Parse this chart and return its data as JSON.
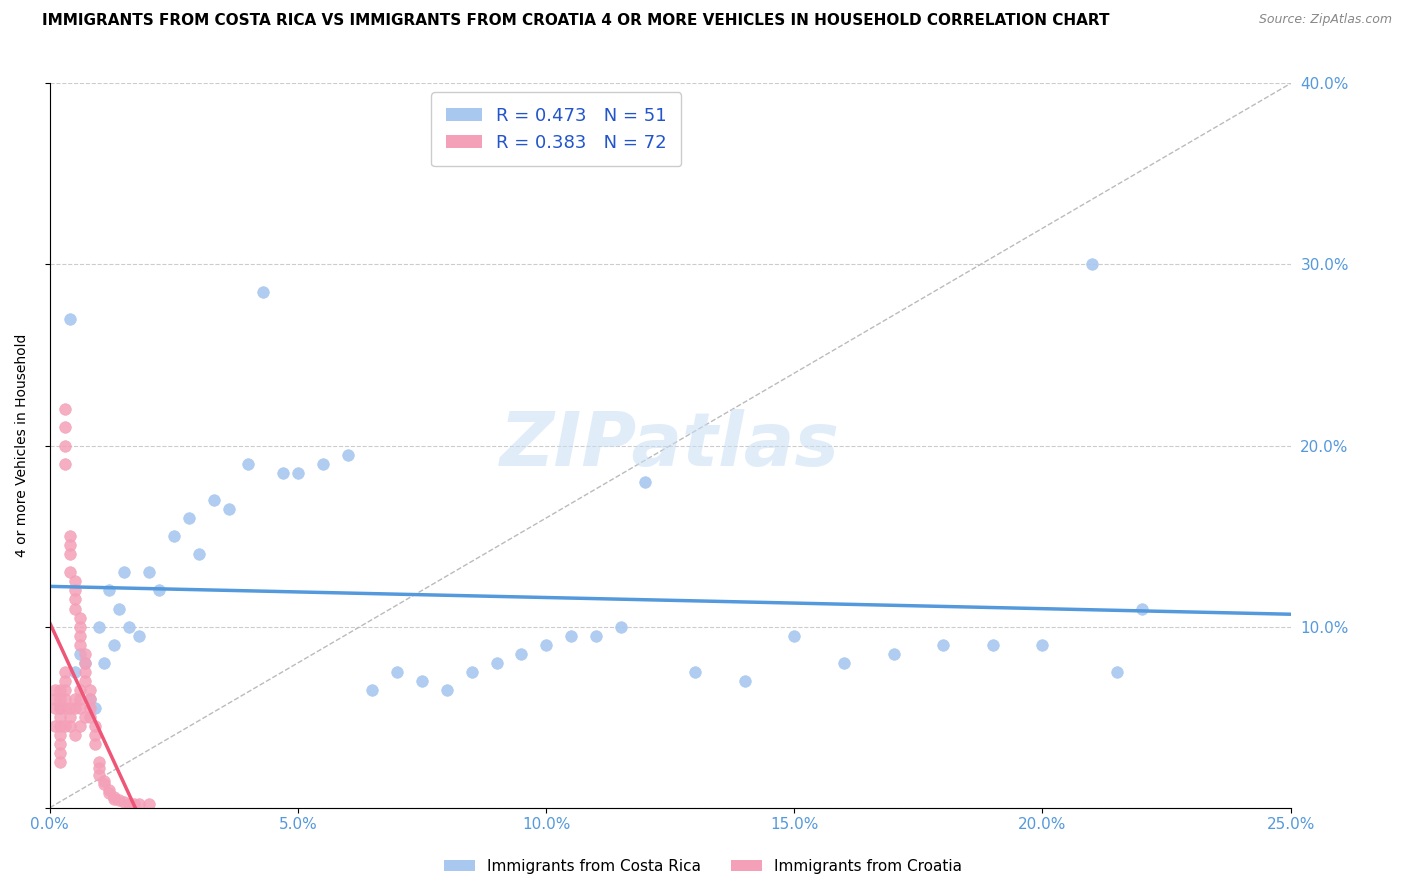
{
  "title": "IMMIGRANTS FROM COSTA RICA VS IMMIGRANTS FROM CROATIA 4 OR MORE VEHICLES IN HOUSEHOLD CORRELATION CHART",
  "source": "Source: ZipAtlas.com",
  "ylabel": "4 or more Vehicles in Household",
  "xlim": [
    0.0,
    0.25
  ],
  "ylim": [
    0.0,
    0.4
  ],
  "xticks": [
    0.0,
    0.05,
    0.1,
    0.15,
    0.2,
    0.25
  ],
  "yticks": [
    0.0,
    0.1,
    0.2,
    0.3,
    0.4
  ],
  "xtick_labels": [
    "0.0%",
    "5.0%",
    "10.0%",
    "15.0%",
    "20.0%",
    "25.0%"
  ],
  "ytick_labels_right": [
    "",
    "10.0%",
    "20.0%",
    "30.0%",
    "40.0%"
  ],
  "blue_color": "#a8c8f0",
  "pink_color": "#f4a0b8",
  "blue_line_color": "#5599dd",
  "pink_line_color": "#ee5577",
  "R_blue": 0.473,
  "N_blue": 51,
  "R_pink": 0.383,
  "N_pink": 72,
  "legend_label_blue": "Immigrants from Costa Rica",
  "legend_label_pink": "Immigrants from Croatia",
  "watermark": "ZIPatlas",
  "title_fontsize": 11,
  "axis_label_fontsize": 10,
  "tick_fontsize": 11,
  "blue_scatter_x": [
    0.002,
    0.004,
    0.005,
    0.006,
    0.007,
    0.008,
    0.009,
    0.01,
    0.011,
    0.012,
    0.013,
    0.014,
    0.015,
    0.016,
    0.018,
    0.02,
    0.022,
    0.025,
    0.028,
    0.03,
    0.033,
    0.036,
    0.04,
    0.043,
    0.047,
    0.05,
    0.055,
    0.06,
    0.065,
    0.07,
    0.075,
    0.08,
    0.085,
    0.09,
    0.095,
    0.1,
    0.105,
    0.11,
    0.115,
    0.12,
    0.13,
    0.14,
    0.15,
    0.16,
    0.17,
    0.18,
    0.19,
    0.2,
    0.21,
    0.215,
    0.22
  ],
  "blue_scatter_y": [
    0.055,
    0.27,
    0.075,
    0.085,
    0.08,
    0.06,
    0.055,
    0.1,
    0.08,
    0.12,
    0.09,
    0.11,
    0.13,
    0.1,
    0.095,
    0.13,
    0.12,
    0.15,
    0.16,
    0.14,
    0.17,
    0.165,
    0.19,
    0.285,
    0.185,
    0.185,
    0.19,
    0.195,
    0.065,
    0.075,
    0.07,
    0.065,
    0.075,
    0.08,
    0.085,
    0.09,
    0.095,
    0.095,
    0.1,
    0.18,
    0.075,
    0.07,
    0.095,
    0.08,
    0.085,
    0.09,
    0.09,
    0.09,
    0.3,
    0.075,
    0.11
  ],
  "pink_scatter_x": [
    0.001,
    0.001,
    0.001,
    0.001,
    0.002,
    0.002,
    0.002,
    0.002,
    0.002,
    0.002,
    0.002,
    0.002,
    0.002,
    0.003,
    0.003,
    0.003,
    0.003,
    0.003,
    0.003,
    0.003,
    0.003,
    0.003,
    0.003,
    0.004,
    0.004,
    0.004,
    0.004,
    0.004,
    0.004,
    0.004,
    0.005,
    0.005,
    0.005,
    0.005,
    0.005,
    0.005,
    0.005,
    0.006,
    0.006,
    0.006,
    0.006,
    0.006,
    0.006,
    0.006,
    0.006,
    0.007,
    0.007,
    0.007,
    0.007,
    0.007,
    0.008,
    0.008,
    0.008,
    0.008,
    0.009,
    0.009,
    0.009,
    0.01,
    0.01,
    0.01,
    0.011,
    0.011,
    0.012,
    0.012,
    0.013,
    0.013,
    0.014,
    0.015,
    0.016,
    0.017,
    0.018,
    0.02
  ],
  "pink_scatter_y": [
    0.055,
    0.06,
    0.065,
    0.045,
    0.05,
    0.055,
    0.06,
    0.065,
    0.04,
    0.045,
    0.035,
    0.03,
    0.025,
    0.22,
    0.21,
    0.2,
    0.19,
    0.055,
    0.06,
    0.065,
    0.07,
    0.075,
    0.045,
    0.15,
    0.145,
    0.14,
    0.13,
    0.05,
    0.055,
    0.045,
    0.125,
    0.12,
    0.115,
    0.11,
    0.055,
    0.06,
    0.04,
    0.105,
    0.1,
    0.095,
    0.09,
    0.055,
    0.06,
    0.065,
    0.045,
    0.085,
    0.08,
    0.075,
    0.07,
    0.05,
    0.065,
    0.06,
    0.055,
    0.05,
    0.045,
    0.04,
    0.035,
    0.025,
    0.022,
    0.018,
    0.015,
    0.013,
    0.01,
    0.008,
    0.006,
    0.005,
    0.004,
    0.003,
    0.002,
    0.002,
    0.002,
    0.002
  ]
}
